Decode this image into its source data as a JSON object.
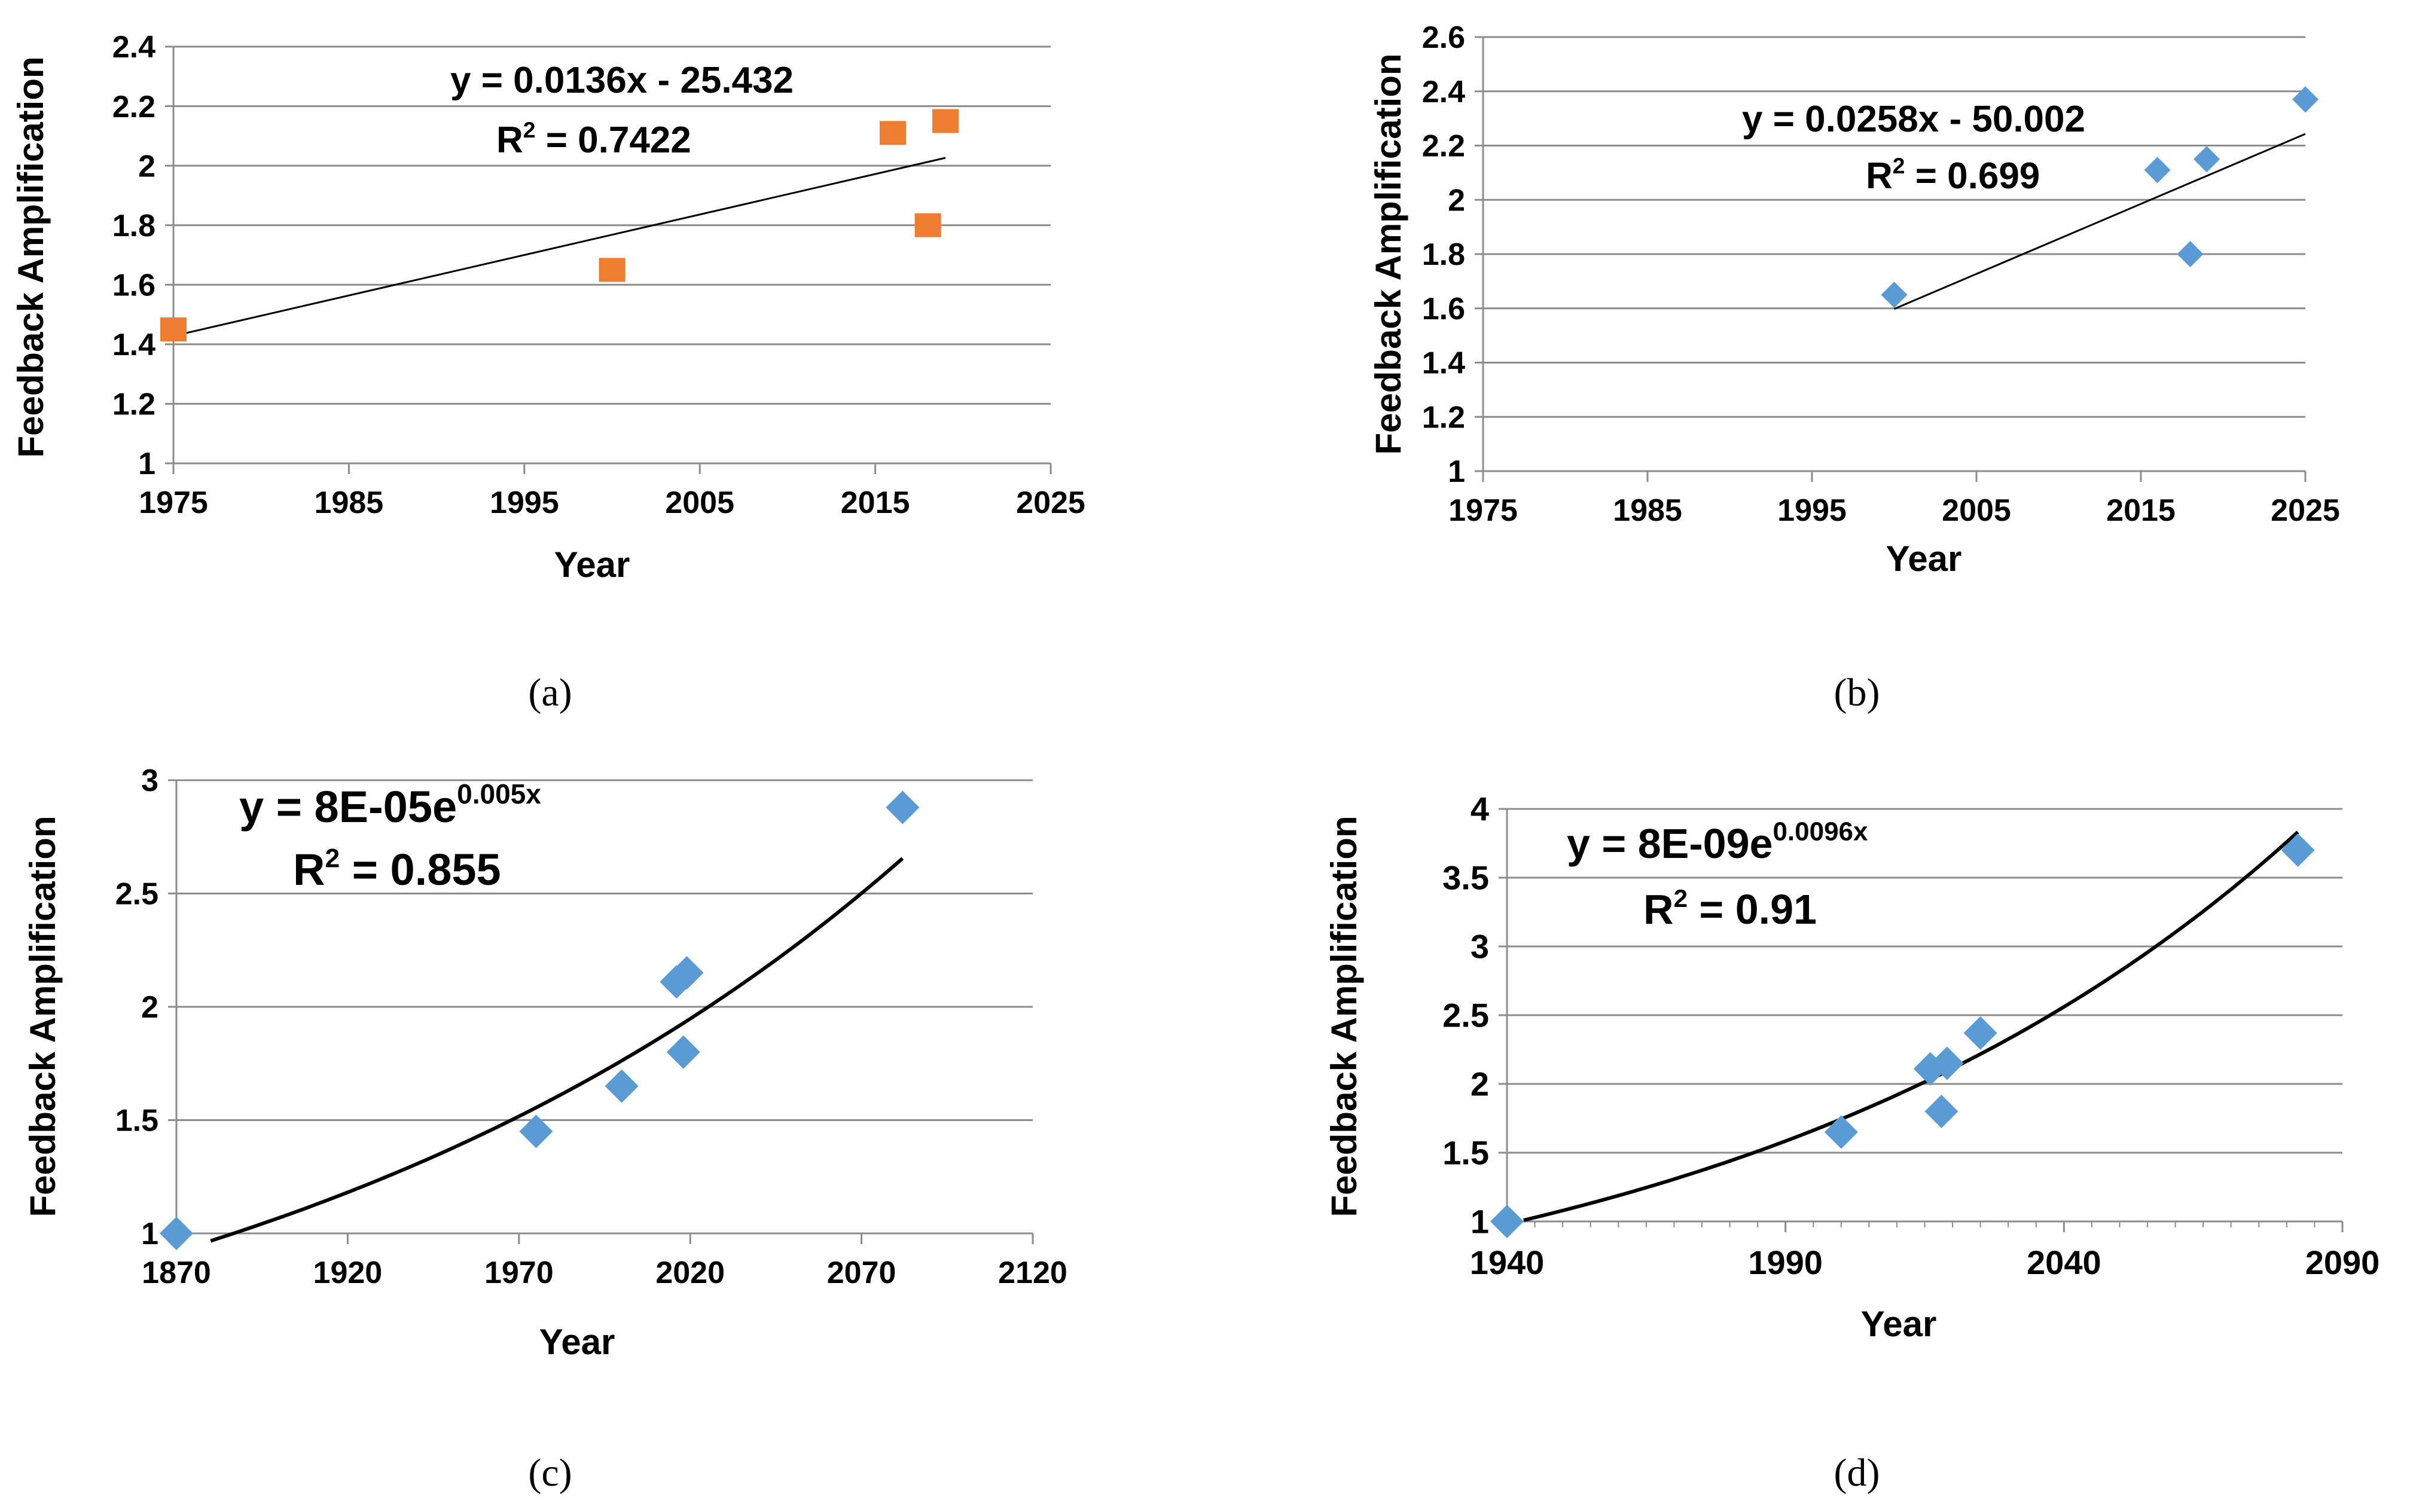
{
  "chart_data": [
    {
      "panel": "(a)",
      "type": "scatter",
      "xlabel": "Year",
      "ylabel": "Feedback Amplification",
      "xlim": [
        1975,
        2025
      ],
      "ylim": [
        1,
        2.4
      ],
      "xticks": [
        "1975",
        "1985",
        "1995",
        "2005",
        "2015",
        "2025"
      ],
      "yticks": [
        "1",
        "1.2",
        "1.4",
        "1.6",
        "1.8",
        "2",
        "2.2",
        "2.4"
      ],
      "grid": "horizontal",
      "marker": "square",
      "marker_color": "#ED7D31",
      "points": [
        {
          "x": 1975,
          "y": 1.45
        },
        {
          "x": 2000,
          "y": 1.65
        },
        {
          "x": 2016,
          "y": 2.11
        },
        {
          "x": 2018,
          "y": 1.8
        },
        {
          "x": 2019,
          "y": 2.15
        }
      ],
      "trendline": {
        "kind": "linear",
        "slope": 0.0136,
        "intercept": -25.432,
        "x_range": [
          1975,
          2019
        ]
      },
      "equation": {
        "prefix": "y = 0.0136x - 25.432",
        "sup": ""
      },
      "r2": {
        "base": "R",
        "sup": "2",
        "rest": " = 0.7422"
      }
    },
    {
      "panel": "(b)",
      "type": "scatter",
      "xlabel": "Year",
      "ylabel": "Feedback Amplification",
      "xlim": [
        1975,
        2025
      ],
      "ylim": [
        1,
        2.6
      ],
      "xticks": [
        "1975",
        "1985",
        "1995",
        "2005",
        "2015",
        "2025"
      ],
      "yticks": [
        "1",
        "1.2",
        "1.4",
        "1.6",
        "1.8",
        "2",
        "2.2",
        "2.4",
        "2.6"
      ],
      "grid": "horizontal",
      "marker": "diamond",
      "marker_color": "#5B9BD5",
      "points": [
        {
          "x": 2000,
          "y": 1.65
        },
        {
          "x": 2016,
          "y": 2.11
        },
        {
          "x": 2018,
          "y": 1.8
        },
        {
          "x": 2019,
          "y": 2.15
        },
        {
          "x": 2025,
          "y": 2.37
        }
      ],
      "trendline": {
        "kind": "linear",
        "slope": 0.0258,
        "intercept": -50.002,
        "x_range": [
          2000,
          2025
        ]
      },
      "equation": {
        "prefix": "y = 0.0258x - 50.002",
        "sup": ""
      },
      "r2": {
        "base": "R",
        "sup": "2",
        "rest": " = 0.699"
      }
    },
    {
      "panel": "(c)",
      "type": "scatter",
      "xlabel": "Year",
      "ylabel": "Feedback Amplification",
      "xlim": [
        1870,
        2120
      ],
      "ylim": [
        1,
        3
      ],
      "xticks": [
        "1870",
        "1920",
        "1970",
        "2020",
        "2070",
        "2120"
      ],
      "yticks": [
        "1",
        "1.5",
        "2",
        "2.5",
        "3"
      ],
      "grid": "horizontal",
      "marker": "diamond",
      "marker_color": "#5B9BD5",
      "points": [
        {
          "x": 1870,
          "y": 1
        },
        {
          "x": 1975,
          "y": 1.45
        },
        {
          "x": 2000,
          "y": 1.65
        },
        {
          "x": 2016,
          "y": 2.11
        },
        {
          "x": 2018,
          "y": 1.8
        },
        {
          "x": 2019,
          "y": 2.15
        },
        {
          "x": 2082,
          "y": 2.88
        }
      ],
      "trendline": {
        "kind": "exponential",
        "a": 8e-05,
        "b": 0.005,
        "x_range": [
          1880,
          2082
        ]
      },
      "equation": {
        "prefix": "y = 8E-05e",
        "sup": "0.005x"
      },
      "r2": {
        "base": "R",
        "sup": "2",
        "rest": " = 0.855"
      }
    },
    {
      "panel": "(d)",
      "type": "scatter",
      "xlabel": "Year",
      "ylabel": "Feedback Amplification",
      "xlim": [
        1940,
        2090
      ],
      "ylim": [
        1,
        4
      ],
      "xticks": [
        "1940",
        "1990",
        "2040",
        "2090"
      ],
      "minor_xticks": true,
      "yticks": [
        "1",
        "1.5",
        "2",
        "2.5",
        "3",
        "3.5",
        "4"
      ],
      "grid": "horizontal",
      "marker": "diamond",
      "marker_color": "#5B9BD5",
      "points": [
        {
          "x": 1940,
          "y": 1
        },
        {
          "x": 2000,
          "y": 1.65
        },
        {
          "x": 2016,
          "y": 2.11
        },
        {
          "x": 2018,
          "y": 1.8
        },
        {
          "x": 2019,
          "y": 2.15
        },
        {
          "x": 2025,
          "y": 2.37
        },
        {
          "x": 2082,
          "y": 3.7
        }
      ],
      "trendline": {
        "kind": "exponential",
        "a": 8e-09,
        "b": 0.0096,
        "x_range": [
          1943,
          2082
        ]
      },
      "equation": {
        "prefix": "y = 8E-09e",
        "sup": "0.0096x"
      },
      "r2": {
        "base": "R",
        "sup": "2",
        "rest": " = 0.91"
      }
    }
  ]
}
